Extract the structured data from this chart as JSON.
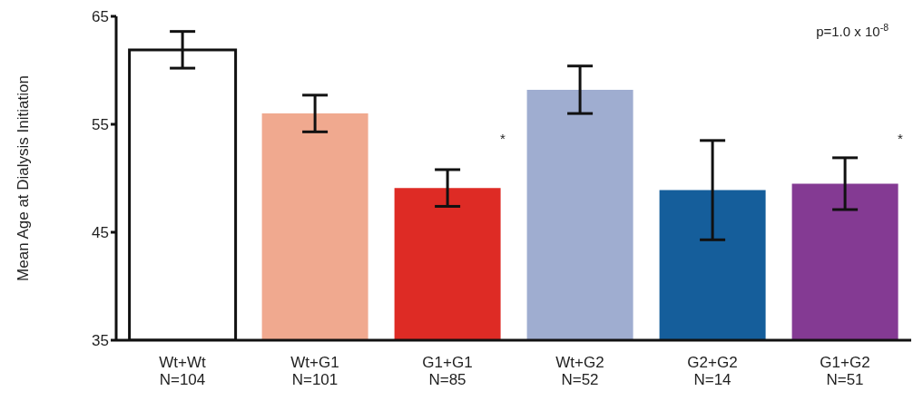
{
  "chart_data": {
    "type": "bar",
    "ylabel": "Mean Age at Dialysis Initiation",
    "categories": [
      "Wt+Wt\nN=104",
      "Wt+G1\nN=101",
      "G1+G1\nN=85",
      "Wt+G2\nN=52",
      "G2+G2\nN=14",
      "G1+G2\nN=51"
    ],
    "values": [
      61.9,
      56.0,
      49.1,
      58.2,
      48.9,
      49.5
    ],
    "errors": [
      1.7,
      1.7,
      1.7,
      2.2,
      4.6,
      2.4
    ],
    "colors": [
      "#ffffff",
      "#f0a98f",
      "#de2b25",
      "#9fadd0",
      "#155e9b",
      "#843a93"
    ],
    "ylim": [
      35,
      65
    ],
    "yticks": [
      35,
      45,
      55,
      65
    ],
    "grid": false,
    "annotations": [
      "p=1.0 x 10$^{-8}$",
      "*",
      "*"
    ]
  }
}
